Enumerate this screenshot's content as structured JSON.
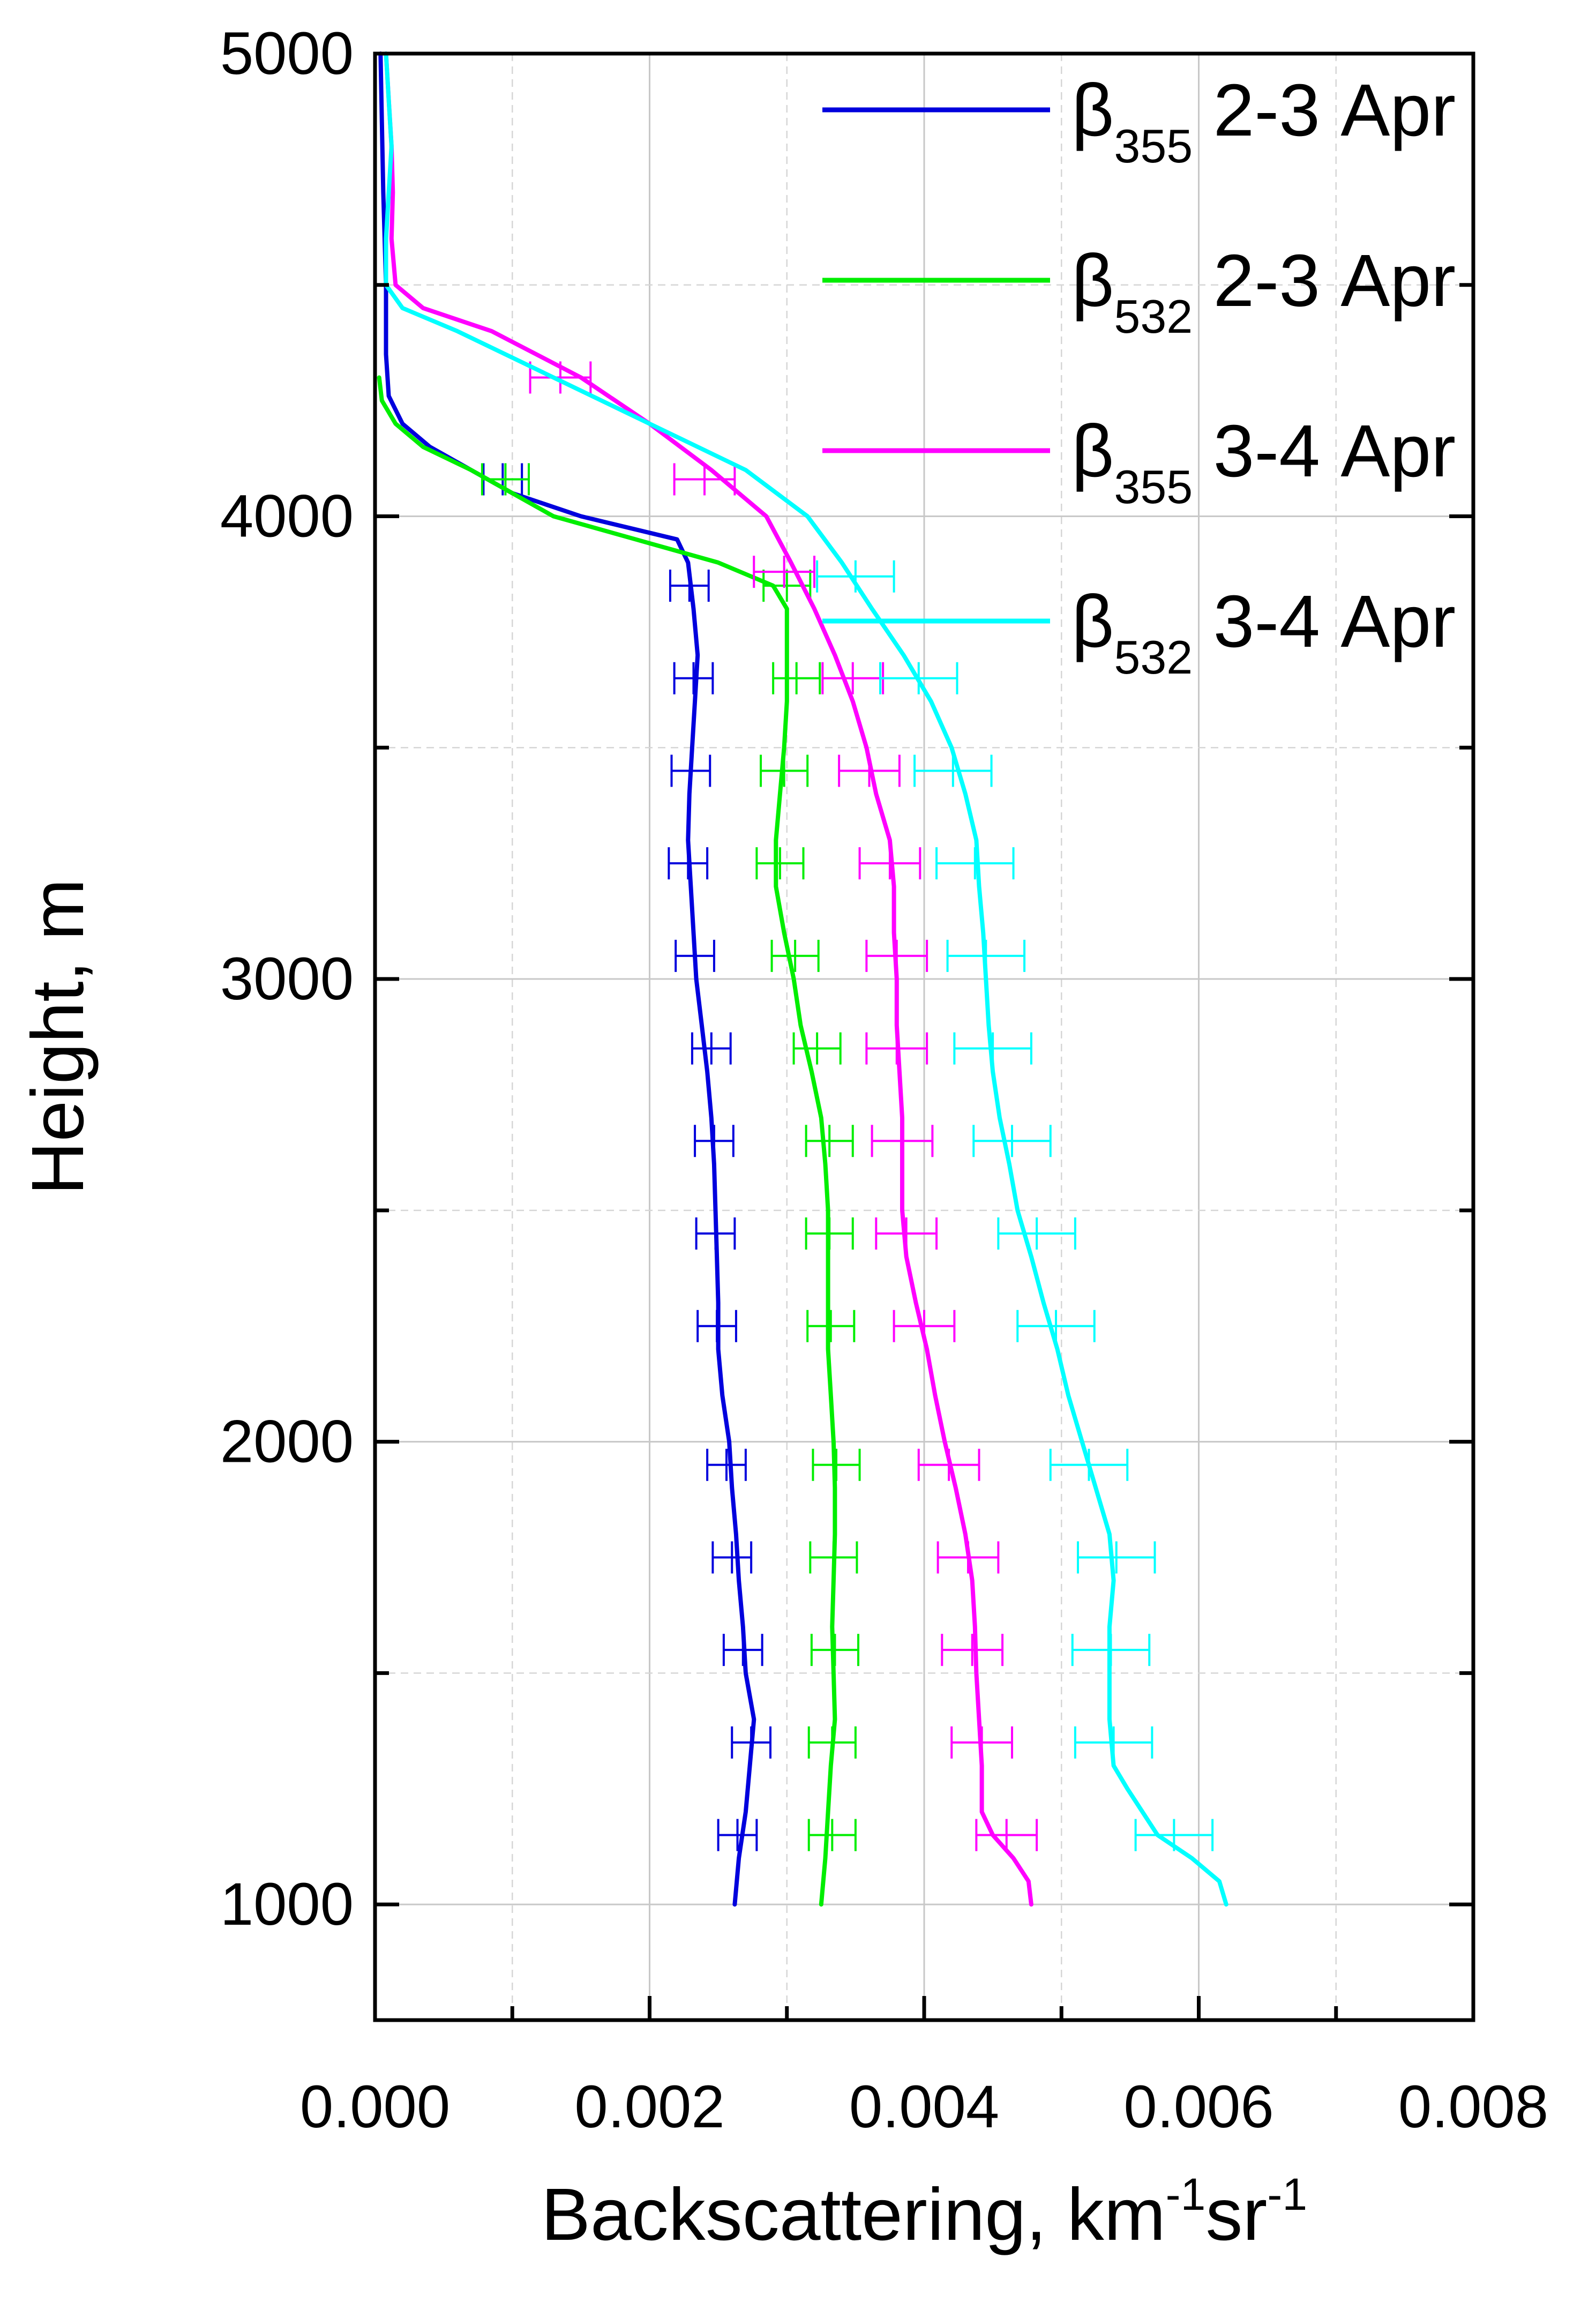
{
  "chart_data": {
    "type": "line",
    "xlabel": "Backscattering, km",
    "xlabel_sup1": "-1",
    "xlabel_mid": "sr",
    "xlabel_sup2": "-1",
    "ylabel": "Height, m",
    "xlim": [
      0.0,
      0.008
    ],
    "ylim": [
      750,
      5000
    ],
    "x_ticks": [
      0.0,
      0.002,
      0.004,
      0.006,
      0.008
    ],
    "x_tick_labels": [
      "0.000",
      "0.002",
      "0.004",
      "0.006",
      "0.008"
    ],
    "y_ticks": [
      1000,
      2000,
      3000,
      4000,
      5000
    ],
    "y_tick_labels": [
      "1000",
      "2000",
      "3000",
      "4000",
      "5000"
    ],
    "grid": true,
    "legend_position": "top-right",
    "series": [
      {
        "name": "β355 2-3 Apr",
        "label_symbol": "β",
        "label_sub": "355",
        "label_text": "2-3 Apr",
        "color": "#0000dd",
        "points": [
          [
            0.00262,
            1000
          ],
          [
            0.00265,
            1100
          ],
          [
            0.0027,
            1200
          ],
          [
            0.00273,
            1300
          ],
          [
            0.00276,
            1400
          ],
          [
            0.0027,
            1500
          ],
          [
            0.00268,
            1600
          ],
          [
            0.00265,
            1700
          ],
          [
            0.00263,
            1800
          ],
          [
            0.0026,
            1900
          ],
          [
            0.00258,
            2000
          ],
          [
            0.00253,
            2100
          ],
          [
            0.0025,
            2200
          ],
          [
            0.0025,
            2300
          ],
          [
            0.00249,
            2400
          ],
          [
            0.00248,
            2500
          ],
          [
            0.00247,
            2600
          ],
          [
            0.00245,
            2700
          ],
          [
            0.00242,
            2800
          ],
          [
            0.00238,
            2900
          ],
          [
            0.00234,
            3000
          ],
          [
            0.00232,
            3100
          ],
          [
            0.0023,
            3200
          ],
          [
            0.00228,
            3300
          ],
          [
            0.00229,
            3400
          ],
          [
            0.00231,
            3500
          ],
          [
            0.00233,
            3600
          ],
          [
            0.00235,
            3700
          ],
          [
            0.00232,
            3800
          ],
          [
            0.00228,
            3900
          ],
          [
            0.0022,
            3950
          ],
          [
            0.0015,
            4000
          ],
          [
            0.001,
            4050
          ],
          [
            0.0007,
            4100
          ],
          [
            0.0004,
            4150
          ],
          [
            0.0002,
            4200
          ],
          [
            0.0001,
            4260
          ],
          [
            8e-05,
            4350
          ],
          [
            8e-05,
            4500
          ],
          [
            6e-05,
            4700
          ],
          [
            5e-05,
            4850
          ],
          [
            4e-05,
            5000
          ]
        ],
        "error_bars": [
          [
            0.00264,
            1150,
            0.00014
          ],
          [
            0.00274,
            1350,
            0.00014
          ],
          [
            0.00268,
            1550,
            0.00014
          ],
          [
            0.0026,
            1750,
            0.00014
          ],
          [
            0.00256,
            1950,
            0.00014
          ],
          [
            0.00249,
            2250,
            0.00014
          ],
          [
            0.00248,
            2450,
            0.00014
          ],
          [
            0.00247,
            2650,
            0.00014
          ],
          [
            0.00245,
            2850,
            0.00014
          ],
          [
            0.00233,
            3050,
            0.00014
          ],
          [
            0.00228,
            3250,
            0.00014
          ],
          [
            0.0023,
            3450,
            0.00014
          ],
          [
            0.00232,
            3650,
            0.00014
          ],
          [
            0.00229,
            3850,
            0.00014
          ],
          [
            0.00093,
            4080,
            0.00014
          ]
        ]
      },
      {
        "name": "β532 2-3 Apr",
        "label_symbol": "β",
        "label_sub": "532",
        "label_text": "2-3 Apr",
        "color": "#00ee00",
        "points": [
          [
            0.00325,
            1000
          ],
          [
            0.00328,
            1100
          ],
          [
            0.0033,
            1200
          ],
          [
            0.00332,
            1300
          ],
          [
            0.00335,
            1400
          ],
          [
            0.00334,
            1500
          ],
          [
            0.00333,
            1600
          ],
          [
            0.00334,
            1700
          ],
          [
            0.00335,
            1800
          ],
          [
            0.00335,
            1900
          ],
          [
            0.00334,
            2000
          ],
          [
            0.00332,
            2100
          ],
          [
            0.0033,
            2200
          ],
          [
            0.0033,
            2300
          ],
          [
            0.0033,
            2400
          ],
          [
            0.0033,
            2500
          ],
          [
            0.00328,
            2600
          ],
          [
            0.00325,
            2700
          ],
          [
            0.00318,
            2800
          ],
          [
            0.0031,
            2900
          ],
          [
            0.00305,
            3000
          ],
          [
            0.00298,
            3100
          ],
          [
            0.00292,
            3200
          ],
          [
            0.00292,
            3300
          ],
          [
            0.00295,
            3400
          ],
          [
            0.00298,
            3500
          ],
          [
            0.003,
            3600
          ],
          [
            0.003,
            3700
          ],
          [
            0.003,
            3800
          ],
          [
            0.0029,
            3850
          ],
          [
            0.0025,
            3900
          ],
          [
            0.0019,
            3950
          ],
          [
            0.0013,
            4000
          ],
          [
            0.001,
            4050
          ],
          [
            0.0007,
            4100
          ],
          [
            0.00035,
            4150
          ],
          [
            0.00015,
            4200
          ],
          [
            5e-05,
            4250
          ],
          [
            3e-05,
            4300
          ]
        ],
        "error_bars": [
          [
            0.00333,
            1150,
            0.00017
          ],
          [
            0.00333,
            1350,
            0.00017
          ],
          [
            0.00335,
            1550,
            0.00017
          ],
          [
            0.00334,
            1750,
            0.00017
          ],
          [
            0.00336,
            1950,
            0.00017
          ],
          [
            0.00332,
            2250,
            0.00017
          ],
          [
            0.00331,
            2450,
            0.00017
          ],
          [
            0.00331,
            2650,
            0.00017
          ],
          [
            0.00322,
            2850,
            0.00017
          ],
          [
            0.00306,
            3050,
            0.00017
          ],
          [
            0.00295,
            3250,
            0.00017
          ],
          [
            0.00298,
            3450,
            0.00017
          ],
          [
            0.00307,
            3650,
            0.00017
          ],
          [
            0.003,
            3850,
            0.00017
          ],
          [
            0.00095,
            4080,
            0.00017
          ]
        ]
      },
      {
        "name": "β355 3-4 Apr",
        "label_symbol": "β",
        "label_sub": "355",
        "label_text": "3-4 Apr",
        "color": "#ff00ff",
        "points": [
          [
            0.00478,
            1000
          ],
          [
            0.00476,
            1050
          ],
          [
            0.00465,
            1100
          ],
          [
            0.0045,
            1150
          ],
          [
            0.00442,
            1200
          ],
          [
            0.00442,
            1300
          ],
          [
            0.0044,
            1400
          ],
          [
            0.00438,
            1500
          ],
          [
            0.00437,
            1600
          ],
          [
            0.00435,
            1700
          ],
          [
            0.0043,
            1800
          ],
          [
            0.00423,
            1900
          ],
          [
            0.00415,
            2000
          ],
          [
            0.00408,
            2100
          ],
          [
            0.00402,
            2200
          ],
          [
            0.00394,
            2300
          ],
          [
            0.00387,
            2400
          ],
          [
            0.00384,
            2500
          ],
          [
            0.00384,
            2600
          ],
          [
            0.00384,
            2700
          ],
          [
            0.00382,
            2800
          ],
          [
            0.0038,
            2900
          ],
          [
            0.0038,
            3000
          ],
          [
            0.00378,
            3100
          ],
          [
            0.00378,
            3200
          ],
          [
            0.00375,
            3300
          ],
          [
            0.00365,
            3400
          ],
          [
            0.00358,
            3500
          ],
          [
            0.00348,
            3600
          ],
          [
            0.00335,
            3700
          ],
          [
            0.0032,
            3800
          ],
          [
            0.00303,
            3900
          ],
          [
            0.00285,
            4000
          ],
          [
            0.00245,
            4100
          ],
          [
            0.002,
            4200
          ],
          [
            0.0015,
            4300
          ],
          [
            0.00085,
            4400
          ],
          [
            0.00035,
            4450
          ],
          [
            0.00015,
            4500
          ],
          [
            0.00012,
            4600
          ],
          [
            0.00013,
            4700
          ],
          [
            0.00012,
            4800
          ],
          [
            0.0001,
            4900
          ],
          [
            8e-05,
            5000
          ]
        ],
        "error_bars": [
          [
            0.0046,
            1150,
            0.00022
          ],
          [
            0.00442,
            1350,
            0.00022
          ],
          [
            0.00435,
            1550,
            0.00022
          ],
          [
            0.00432,
            1750,
            0.00022
          ],
          [
            0.00418,
            1950,
            0.00022
          ],
          [
            0.004,
            2250,
            0.00022
          ],
          [
            0.00387,
            2450,
            0.00022
          ],
          [
            0.00384,
            2650,
            0.00022
          ],
          [
            0.0038,
            2850,
            0.00022
          ],
          [
            0.0038,
            3050,
            0.00022
          ],
          [
            0.00375,
            3250,
            0.00022
          ],
          [
            0.0036,
            3450,
            0.00022
          ],
          [
            0.00348,
            3650,
            0.00022
          ],
          [
            0.00298,
            3880,
            0.00022
          ],
          [
            0.0024,
            4080,
            0.00022
          ],
          [
            0.00135,
            4300,
            0.00022
          ]
        ]
      },
      {
        "name": "β532 3-4 Apr",
        "label_symbol": "β",
        "label_sub": "532",
        "label_text": "3-4 Apr",
        "color": "#00ffff",
        "points": [
          [
            0.0062,
            1000
          ],
          [
            0.00615,
            1050
          ],
          [
            0.00595,
            1100
          ],
          [
            0.0057,
            1150
          ],
          [
            0.00548,
            1250
          ],
          [
            0.00538,
            1300
          ],
          [
            0.00535,
            1400
          ],
          [
            0.00535,
            1500
          ],
          [
            0.00535,
            1600
          ],
          [
            0.00538,
            1700
          ],
          [
            0.00535,
            1800
          ],
          [
            0.00525,
            1900
          ],
          [
            0.00515,
            2000
          ],
          [
            0.00505,
            2100
          ],
          [
            0.00497,
            2200
          ],
          [
            0.00487,
            2300
          ],
          [
            0.00478,
            2400
          ],
          [
            0.00468,
            2500
          ],
          [
            0.00462,
            2600
          ],
          [
            0.00455,
            2700
          ],
          [
            0.0045,
            2800
          ],
          [
            0.00447,
            2900
          ],
          [
            0.00445,
            3000
          ],
          [
            0.00443,
            3100
          ],
          [
            0.0044,
            3200
          ],
          [
            0.00438,
            3300
          ],
          [
            0.0043,
            3400
          ],
          [
            0.0042,
            3500
          ],
          [
            0.00405,
            3600
          ],
          [
            0.00385,
            3700
          ],
          [
            0.00362,
            3800
          ],
          [
            0.0034,
            3900
          ],
          [
            0.00315,
            4000
          ],
          [
            0.0027,
            4100
          ],
          [
            0.002,
            4200
          ],
          [
            0.0013,
            4300
          ],
          [
            0.0006,
            4400
          ],
          [
            0.0002,
            4450
          ],
          [
            8e-05,
            4500
          ],
          [
            8e-05,
            4600
          ],
          [
            0.0001,
            4700
          ],
          [
            0.00012,
            4800
          ],
          [
            0.0001,
            4900
          ],
          [
            8e-05,
            5000
          ]
        ],
        "error_bars": [
          [
            0.00582,
            1150,
            0.00028
          ],
          [
            0.00538,
            1350,
            0.00028
          ],
          [
            0.00536,
            1550,
            0.00028
          ],
          [
            0.0054,
            1750,
            0.00028
          ],
          [
            0.0052,
            1950,
            0.00028
          ],
          [
            0.00496,
            2250,
            0.00028
          ],
          [
            0.00482,
            2450,
            0.00028
          ],
          [
            0.00464,
            2650,
            0.00028
          ],
          [
            0.0045,
            2850,
            0.00028
          ],
          [
            0.00445,
            3050,
            0.00028
          ],
          [
            0.00437,
            3250,
            0.00028
          ],
          [
            0.00421,
            3450,
            0.00028
          ],
          [
            0.00396,
            3650,
            0.00028
          ],
          [
            0.0035,
            3870,
            0.00028
          ]
        ]
      }
    ]
  }
}
